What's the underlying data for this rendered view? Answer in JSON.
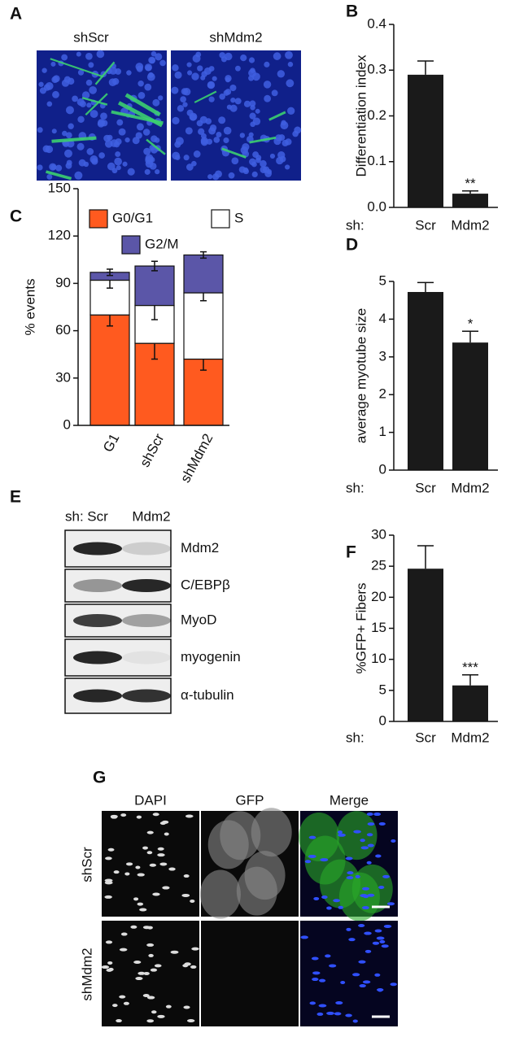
{
  "panel_a": {
    "label": "A",
    "images": [
      "shScr",
      "shMdm2"
    ]
  },
  "chart_data": [
    {
      "type": "bar",
      "panel": "B",
      "y_label": "Differentiation index",
      "x_prefix": "sh:",
      "categories": [
        "Scr",
        "Mdm2"
      ],
      "values": [
        0.29,
        0.03
      ],
      "errors": [
        0.03,
        0.006
      ],
      "significance": [
        null,
        "**"
      ],
      "color": "#1a1a1a",
      "ylim": [
        0,
        0.4
      ],
      "yticks": [
        {
          "value": 0,
          "label": "0.0"
        },
        0.1,
        0.2,
        0.3,
        0.4
      ]
    },
    {
      "type": "stacked_bar",
      "panel": "C",
      "y_label": "% events",
      "categories": [
        "G1",
        "shScr",
        "shMdm2"
      ],
      "series": [
        {
          "name": "G0/G1",
          "color": "#ff5a1f",
          "values": [
            70,
            52,
            42
          ],
          "errors": [
            7,
            10,
            7
          ]
        },
        {
          "name": "S",
          "color": "#ffffff",
          "values": [
            22,
            24,
            42
          ],
          "errors": [
            5,
            9,
            5
          ]
        },
        {
          "name": "G2/M",
          "color": "#5b56a8",
          "values": [
            5,
            25,
            24
          ],
          "errors": [
            2,
            3,
            2
          ]
        }
      ],
      "ylim": [
        0,
        150
      ],
      "yticks": [
        0,
        30,
        60,
        90,
        120,
        150
      ]
    },
    {
      "type": "bar",
      "panel": "D",
      "y_label": "average myotube size",
      "x_prefix": "sh:",
      "categories": [
        "Scr",
        "Mdm2"
      ],
      "values": [
        4.72,
        3.38
      ],
      "errors": [
        0.25,
        0.3
      ],
      "significance": [
        null,
        "*"
      ],
      "color": "#1a1a1a",
      "ylim": [
        0,
        5
      ],
      "yticks": [
        0,
        1,
        2,
        3,
        4,
        5
      ]
    },
    {
      "type": "bar",
      "panel": "F",
      "y_label": "%GFP+ Fibers",
      "x_prefix": "sh:",
      "categories": [
        "Scr",
        "Mdm2"
      ],
      "values": [
        24.6,
        5.8
      ],
      "errors": [
        3.7,
        1.7
      ],
      "significance": [
        null,
        "***"
      ],
      "color": "#1a1a1a",
      "ylim": [
        0,
        30
      ],
      "yticks": [
        0,
        5,
        10,
        15,
        20,
        25,
        30
      ]
    }
  ],
  "panel_e": {
    "label": "E",
    "prefix": "sh:",
    "lanes": [
      "Scr",
      "Mdm2"
    ],
    "rows": [
      "Mdm2",
      "C/EBPβ",
      "MyoD",
      "myogenin",
      "α-tubulin"
    ]
  },
  "panel_g": {
    "label": "G",
    "columns": [
      "DAPI",
      "GFP",
      "Merge"
    ],
    "rows": [
      "shScr",
      "shMdm2"
    ]
  }
}
